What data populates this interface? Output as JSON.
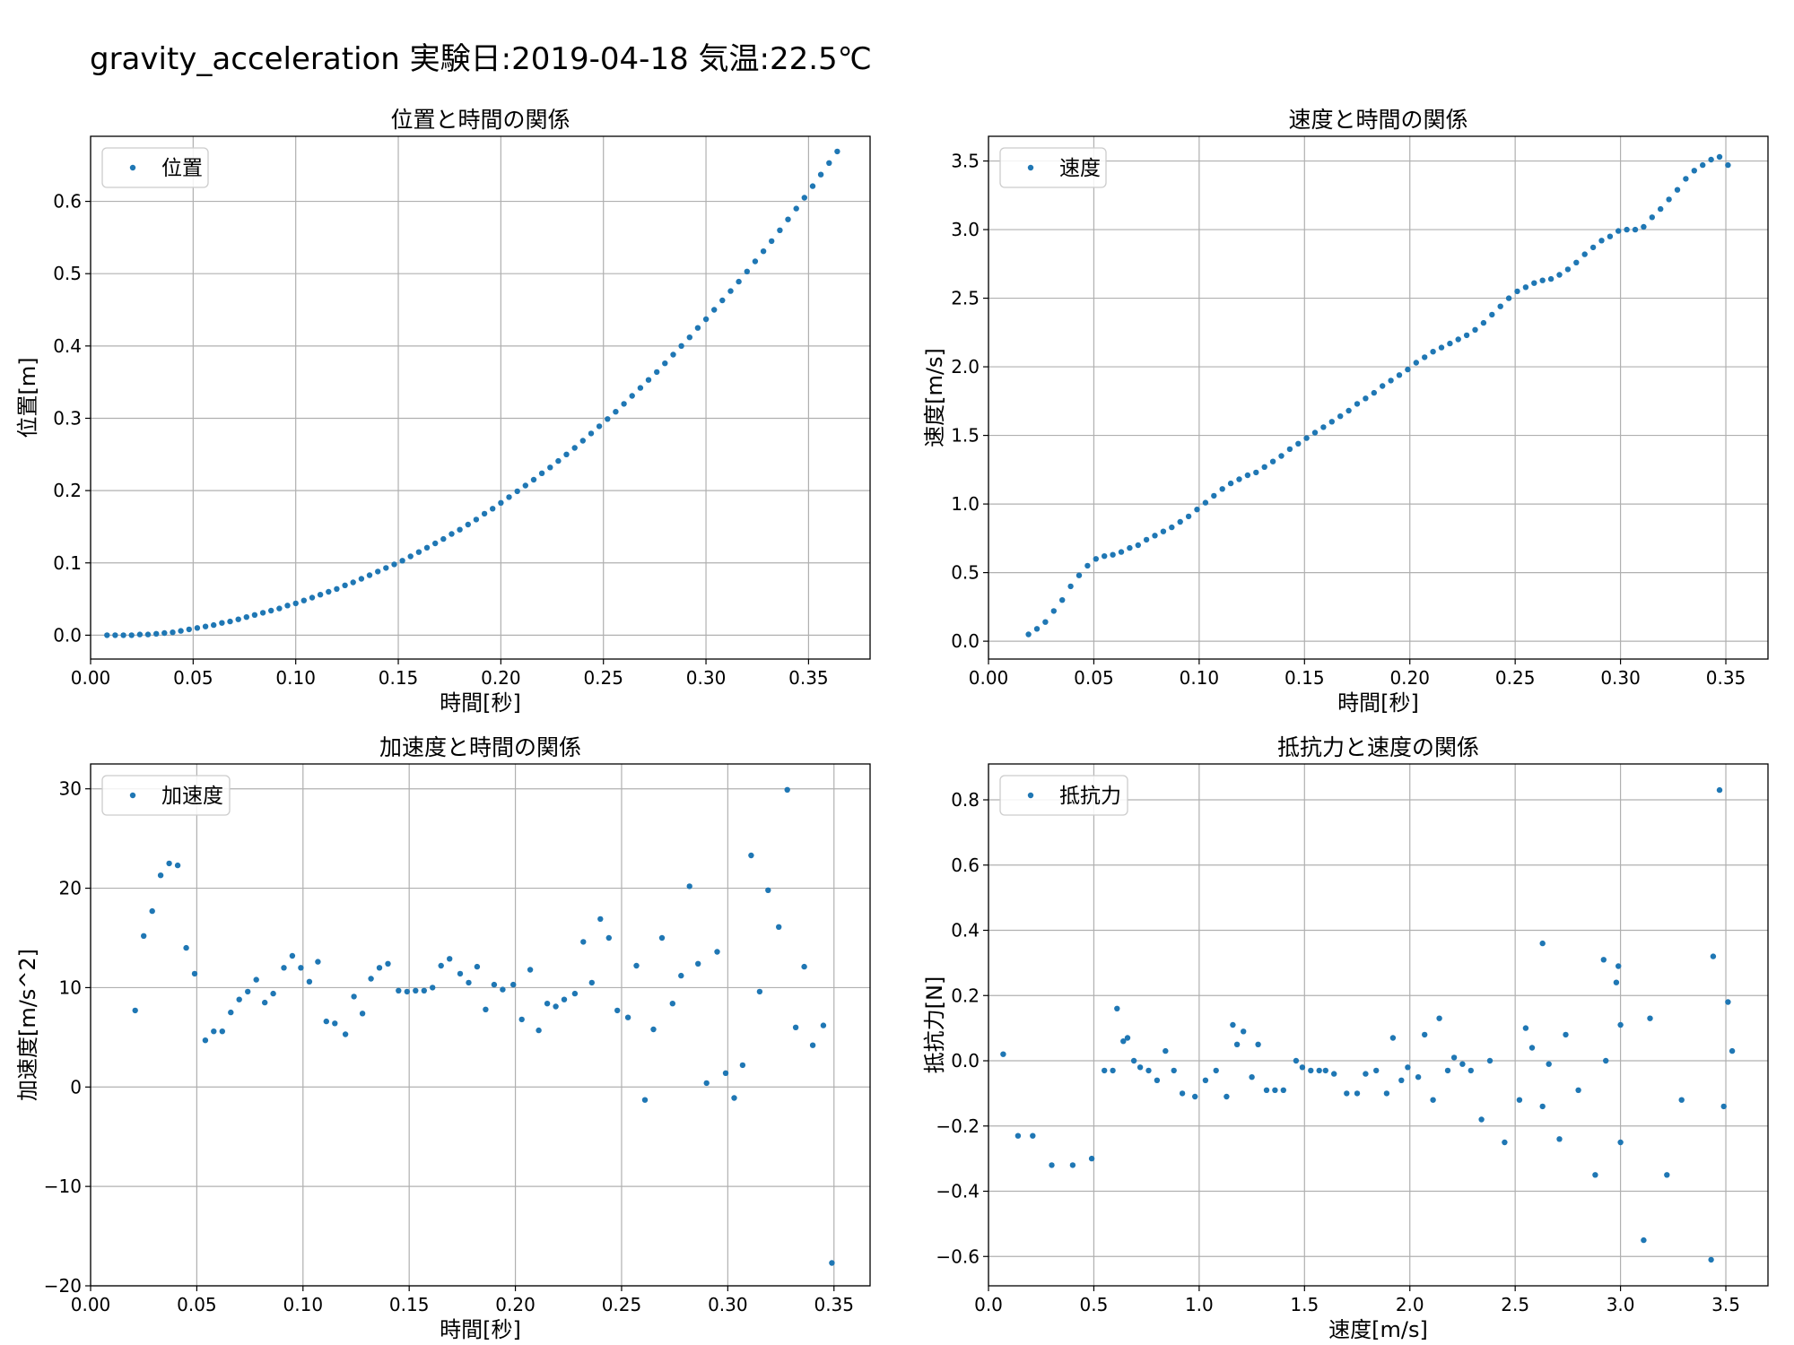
{
  "figure": {
    "suptitle": "gravity_acceleration 実験日:2019-04-18 気温:22.5℃",
    "marker_color": "#1f77b4",
    "grid_color": "#b0b0b0"
  },
  "chart_data": [
    {
      "type": "scatter",
      "title": "位置と時間の関係",
      "xlabel": "時間[秒]",
      "ylabel": "位置[m]",
      "xlim": [
        0.0,
        0.38
      ],
      "ylim": [
        -0.033,
        0.69
      ],
      "xticks": [
        0.0,
        0.05,
        0.1,
        0.15,
        0.2,
        0.25,
        0.3,
        0.35
      ],
      "xtick_labels": [
        "0.00",
        "0.05",
        "0.10",
        "0.15",
        "0.20",
        "0.25",
        "0.30",
        "0.35"
      ],
      "yticks": [
        0.0,
        0.1,
        0.2,
        0.3,
        0.4,
        0.5,
        0.6
      ],
      "ytick_labels": [
        "0.0",
        "0.1",
        "0.2",
        "0.3",
        "0.4",
        "0.5",
        "0.6"
      ],
      "grid": true,
      "legend": "top-left",
      "series": [
        {
          "name": "位置",
          "x": [
            0.008,
            0.012,
            0.016,
            0.02,
            0.024,
            0.028,
            0.032,
            0.036,
            0.04,
            0.044,
            0.048,
            0.052,
            0.056,
            0.06,
            0.064,
            0.068,
            0.072,
            0.076,
            0.08,
            0.084,
            0.088,
            0.092,
            0.096,
            0.1,
            0.104,
            0.108,
            0.112,
            0.116,
            0.12,
            0.124,
            0.128,
            0.132,
            0.136,
            0.14,
            0.144,
            0.148,
            0.152,
            0.156,
            0.16,
            0.164,
            0.168,
            0.172,
            0.176,
            0.18,
            0.184,
            0.188,
            0.192,
            0.196,
            0.2,
            0.204,
            0.208,
            0.212,
            0.216,
            0.22,
            0.224,
            0.228,
            0.232,
            0.236,
            0.24,
            0.244,
            0.248,
            0.252,
            0.256,
            0.26,
            0.264,
            0.268,
            0.272,
            0.276,
            0.28,
            0.284,
            0.288,
            0.292,
            0.296,
            0.3,
            0.304,
            0.308,
            0.312,
            0.316,
            0.32,
            0.324,
            0.328,
            0.332,
            0.336,
            0.34,
            0.344,
            0.348,
            0.352,
            0.356,
            0.36,
            0.364
          ],
          "y": [
            0.0,
            0.0,
            0.0,
            0.0,
            0.001,
            0.001,
            0.002,
            0.003,
            0.004,
            0.006,
            0.008,
            0.01,
            0.012,
            0.014,
            0.017,
            0.019,
            0.022,
            0.025,
            0.028,
            0.031,
            0.034,
            0.037,
            0.041,
            0.044,
            0.048,
            0.052,
            0.056,
            0.06,
            0.064,
            0.069,
            0.073,
            0.078,
            0.083,
            0.088,
            0.093,
            0.098,
            0.103,
            0.109,
            0.115,
            0.121,
            0.127,
            0.133,
            0.14,
            0.146,
            0.153,
            0.16,
            0.168,
            0.175,
            0.183,
            0.191,
            0.199,
            0.207,
            0.215,
            0.224,
            0.232,
            0.241,
            0.25,
            0.259,
            0.269,
            0.279,
            0.289,
            0.299,
            0.309,
            0.32,
            0.331,
            0.342,
            0.353,
            0.364,
            0.376,
            0.388,
            0.4,
            0.412,
            0.425,
            0.437,
            0.45,
            0.463,
            0.476,
            0.489,
            0.503,
            0.517,
            0.531,
            0.545,
            0.56,
            0.575,
            0.59,
            0.605,
            0.621,
            0.637,
            0.653,
            0.669
          ]
        }
      ]
    },
    {
      "type": "scatter",
      "title": "速度と時間の関係",
      "xlabel": "時間[秒]",
      "ylabel": "速度[m/s]",
      "xlim": [
        0.0,
        0.37
      ],
      "ylim": [
        -0.13,
        3.68
      ],
      "xticks": [
        0.0,
        0.05,
        0.1,
        0.15,
        0.2,
        0.25,
        0.3,
        0.35
      ],
      "xtick_labels": [
        "0.00",
        "0.05",
        "0.10",
        "0.15",
        "0.20",
        "0.25",
        "0.30",
        "0.35"
      ],
      "yticks": [
        0.0,
        0.5,
        1.0,
        1.5,
        2.0,
        2.5,
        3.0,
        3.5
      ],
      "ytick_labels": [
        "0.0",
        "0.5",
        "1.0",
        "1.5",
        "2.0",
        "2.5",
        "3.0",
        "3.5"
      ],
      "grid": true,
      "legend": "top-left",
      "series": [
        {
          "name": "速度",
          "x": [
            0.019,
            0.023,
            0.027,
            0.031,
            0.035,
            0.039,
            0.043,
            0.047,
            0.051,
            0.055,
            0.059,
            0.063,
            0.067,
            0.071,
            0.075,
            0.079,
            0.083,
            0.087,
            0.091,
            0.095,
            0.099,
            0.103,
            0.107,
            0.111,
            0.115,
            0.119,
            0.123,
            0.127,
            0.131,
            0.135,
            0.139,
            0.143,
            0.147,
            0.151,
            0.155,
            0.159,
            0.163,
            0.167,
            0.171,
            0.175,
            0.179,
            0.183,
            0.187,
            0.191,
            0.195,
            0.199,
            0.203,
            0.207,
            0.211,
            0.215,
            0.219,
            0.223,
            0.227,
            0.231,
            0.235,
            0.239,
            0.243,
            0.247,
            0.251,
            0.255,
            0.259,
            0.263,
            0.267,
            0.271,
            0.275,
            0.279,
            0.283,
            0.287,
            0.291,
            0.295,
            0.299,
            0.303,
            0.307,
            0.311,
            0.315,
            0.319,
            0.323,
            0.327,
            0.331,
            0.335,
            0.339,
            0.343,
            0.347,
            0.351
          ],
          "y": [
            0.05,
            0.09,
            0.14,
            0.22,
            0.3,
            0.4,
            0.48,
            0.55,
            0.6,
            0.62,
            0.63,
            0.65,
            0.68,
            0.7,
            0.74,
            0.77,
            0.8,
            0.83,
            0.87,
            0.91,
            0.96,
            1.01,
            1.06,
            1.11,
            1.15,
            1.18,
            1.21,
            1.23,
            1.27,
            1.31,
            1.35,
            1.4,
            1.44,
            1.48,
            1.52,
            1.56,
            1.6,
            1.64,
            1.68,
            1.73,
            1.77,
            1.81,
            1.86,
            1.9,
            1.94,
            1.98,
            2.03,
            2.07,
            2.11,
            2.14,
            2.17,
            2.2,
            2.23,
            2.27,
            2.32,
            2.38,
            2.44,
            2.5,
            2.55,
            2.58,
            2.61,
            2.63,
            2.64,
            2.67,
            2.71,
            2.76,
            2.82,
            2.87,
            2.92,
            2.95,
            2.99,
            3.0,
            3.0,
            3.02,
            3.09,
            3.15,
            3.22,
            3.29,
            3.37,
            3.43,
            3.47,
            3.51,
            3.53,
            3.47
          ]
        }
      ]
    },
    {
      "type": "scatter",
      "title": "加速度と時間の関係",
      "xlabel": "時間[秒]",
      "ylabel": "加速度[m/s^2]",
      "xlim": [
        0.0,
        0.367
      ],
      "ylim": [
        -20,
        32.5
      ],
      "xticks": [
        0.0,
        0.05,
        0.1,
        0.15,
        0.2,
        0.25,
        0.3,
        0.35
      ],
      "xtick_labels": [
        "0.00",
        "0.05",
        "0.10",
        "0.15",
        "0.20",
        "0.25",
        "0.30",
        "0.35"
      ],
      "yticks": [
        -20,
        -10,
        0,
        10,
        20,
        30
      ],
      "ytick_labels": [
        "−20",
        "−10",
        "0",
        "10",
        "20",
        "30"
      ],
      "grid": true,
      "legend": "top-left",
      "series": [
        {
          "name": "加速度",
          "x": [
            0.021,
            0.025,
            0.029,
            0.033,
            0.037,
            0.041,
            0.045,
            0.049,
            0.054,
            0.058,
            0.062,
            0.066,
            0.07,
            0.074,
            0.078,
            0.082,
            0.086,
            0.091,
            0.095,
            0.099,
            0.103,
            0.107,
            0.111,
            0.115,
            0.12,
            0.124,
            0.128,
            0.132,
            0.136,
            0.14,
            0.145,
            0.149,
            0.153,
            0.157,
            0.161,
            0.165,
            0.169,
            0.174,
            0.178,
            0.182,
            0.186,
            0.19,
            0.194,
            0.199,
            0.203,
            0.207,
            0.211,
            0.215,
            0.219,
            0.223,
            0.228,
            0.232,
            0.236,
            0.24,
            0.244,
            0.248,
            0.253,
            0.257,
            0.261,
            0.265,
            0.269,
            0.274,
            0.278,
            0.282,
            0.286,
            0.29,
            0.295,
            0.299,
            0.303,
            0.307,
            0.311,
            0.315,
            0.319,
            0.324,
            0.328,
            0.332,
            0.336,
            0.34,
            0.345,
            0.349
          ],
          "y": [
            7.7,
            15.2,
            17.7,
            21.3,
            22.5,
            22.3,
            14.0,
            11.4,
            4.7,
            5.6,
            5.6,
            7.5,
            8.8,
            9.6,
            10.8,
            8.5,
            9.4,
            12.0,
            13.2,
            12.0,
            10.6,
            12.6,
            6.6,
            6.4,
            5.3,
            9.1,
            7.4,
            10.9,
            12.0,
            12.4,
            9.7,
            9.6,
            9.7,
            9.7,
            10.0,
            12.2,
            12.9,
            11.4,
            10.5,
            12.1,
            7.8,
            10.3,
            9.8,
            10.3,
            6.8,
            11.8,
            5.7,
            8.4,
            8.1,
            8.8,
            9.4,
            14.6,
            10.5,
            16.9,
            15.0,
            7.7,
            7.0,
            12.2,
            -1.3,
            5.8,
            15.0,
            8.4,
            11.2,
            20.2,
            12.4,
            0.4,
            13.6,
            1.4,
            -1.1,
            2.2,
            23.3,
            9.6,
            19.8,
            16.1,
            29.9,
            6.0,
            12.1,
            4.2,
            6.2,
            -17.7
          ]
        }
      ]
    },
    {
      "type": "scatter",
      "title": "抵抗力と速度の関係",
      "xlabel": "速度[m/s]",
      "ylabel": "抵抗力[N]",
      "xlim": [
        0.0,
        3.7
      ],
      "ylim": [
        -0.69,
        0.91
      ],
      "xticks": [
        0.0,
        0.5,
        1.0,
        1.5,
        2.0,
        2.5,
        3.0,
        3.5
      ],
      "xtick_labels": [
        "0.0",
        "0.5",
        "1.0",
        "1.5",
        "2.0",
        "2.5",
        "3.0",
        "3.5"
      ],
      "yticks": [
        -0.6,
        -0.4,
        -0.2,
        0.0,
        0.2,
        0.4,
        0.6,
        0.8
      ],
      "ytick_labels": [
        "−0.6",
        "−0.4",
        "−0.2",
        "0.0",
        "0.2",
        "0.4",
        "0.6",
        "0.8"
      ],
      "grid": true,
      "legend": "top-left",
      "series": [
        {
          "name": "抵抗力",
          "x": [
            0.07,
            0.14,
            0.21,
            0.3,
            0.4,
            0.49,
            0.55,
            0.59,
            0.61,
            0.64,
            0.66,
            0.69,
            0.72,
            0.76,
            0.8,
            0.84,
            0.88,
            0.92,
            0.98,
            1.03,
            1.08,
            1.13,
            1.16,
            1.18,
            1.21,
            1.25,
            1.28,
            1.32,
            1.36,
            1.4,
            1.46,
            1.49,
            1.53,
            1.57,
            1.6,
            1.64,
            1.7,
            1.75,
            1.79,
            1.84,
            1.89,
            1.92,
            1.96,
            1.99,
            2.04,
            2.07,
            2.11,
            2.14,
            2.18,
            2.21,
            2.25,
            2.29,
            2.34,
            2.38,
            2.45,
            2.52,
            2.55,
            2.58,
            2.63,
            2.63,
            2.66,
            2.71,
            2.74,
            2.8,
            2.88,
            2.92,
            2.93,
            2.98,
            2.99,
            3.0,
            3.0,
            3.11,
            3.14,
            3.22,
            3.29,
            3.43,
            3.44,
            3.47,
            3.49,
            3.51,
            3.53
          ],
          "y": [
            0.02,
            -0.23,
            -0.23,
            -0.32,
            -0.32,
            -0.3,
            -0.03,
            -0.03,
            0.16,
            0.06,
            0.07,
            0.0,
            -0.02,
            -0.03,
            -0.06,
            0.03,
            -0.03,
            -0.1,
            -0.11,
            -0.06,
            -0.03,
            -0.11,
            0.11,
            0.05,
            0.09,
            -0.05,
            0.05,
            -0.09,
            -0.09,
            -0.09,
            0.0,
            -0.02,
            -0.03,
            -0.03,
            -0.03,
            -0.04,
            -0.1,
            -0.1,
            -0.04,
            -0.03,
            -0.1,
            0.07,
            -0.06,
            -0.02,
            -0.05,
            0.08,
            -0.12,
            0.13,
            -0.03,
            0.01,
            -0.01,
            -0.03,
            -0.18,
            0.0,
            -0.25,
            -0.12,
            0.1,
            0.04,
            0.36,
            -0.14,
            -0.01,
            -0.24,
            0.08,
            -0.09,
            -0.35,
            0.31,
            0.0,
            0.24,
            0.29,
            -0.25,
            0.11,
            -0.55,
            0.13,
            -0.35,
            -0.12,
            -0.61,
            0.32,
            0.83,
            -0.14,
            0.18,
            0.03
          ]
        }
      ]
    }
  ]
}
